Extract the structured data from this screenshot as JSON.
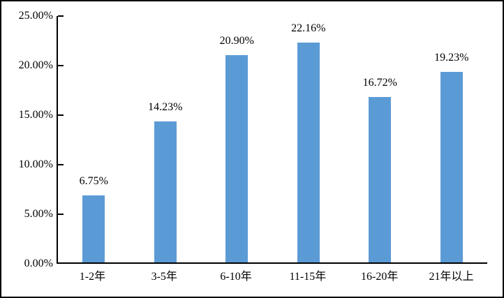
{
  "chart_data": {
    "type": "bar",
    "title": "",
    "xlabel": "",
    "ylabel": "",
    "categories": [
      "1-2年",
      "3-5年",
      "6-10年",
      "11-15年",
      "16-20年",
      "21年以上"
    ],
    "values": [
      6.75,
      14.23,
      20.9,
      22.16,
      16.72,
      19.23
    ],
    "value_labels": [
      "6.75%",
      "14.23%",
      "20.90%",
      "22.16%",
      "16.72%",
      "19.23%"
    ],
    "ylim": [
      0,
      25
    ],
    "y_tick_interval": 5,
    "y_tick_labels": [
      "0.00%",
      "5.00%",
      "10.00%",
      "15.00%",
      "20.00%",
      "25.00%"
    ],
    "y_tick_style": "inside",
    "grid": false,
    "legend_position": "none",
    "bar_color": "#5B9BD5",
    "axis_color": "#000000",
    "text_color": "#000000",
    "background_color": "#FFFFFF",
    "border_color": "#000000"
  }
}
